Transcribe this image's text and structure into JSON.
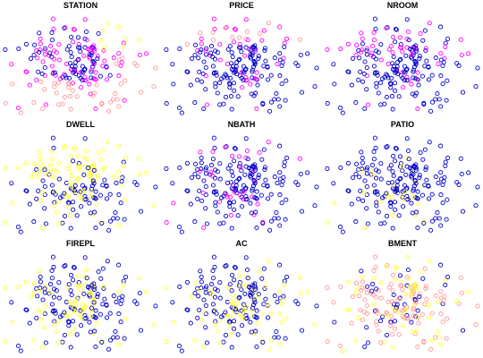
{
  "chart_data": {
    "type": "scatter",
    "description_free": true,
    "grid": false,
    "axes_visible": false,
    "n_points": 200,
    "color_scale": [
      "#0000CC",
      "#FF00FF",
      "#FF9999",
      "#FFFF33"
    ],
    "panels": [
      {
        "title": "STATION",
        "color_rule": "station"
      },
      {
        "title": "PRICE",
        "color_rule": "price"
      },
      {
        "title": "NROOM",
        "color_rule": "nroom"
      },
      {
        "title": "DWELL",
        "color_rule": "dwell"
      },
      {
        "title": "NBATH",
        "color_rule": "nbath"
      },
      {
        "title": "PATIO",
        "color_rule": "patio"
      },
      {
        "title": "FIREPL",
        "color_rule": "firepl"
      },
      {
        "title": "AC",
        "color_rule": "ac"
      },
      {
        "title": "BMENT",
        "color_rule": "bment"
      }
    ]
  }
}
